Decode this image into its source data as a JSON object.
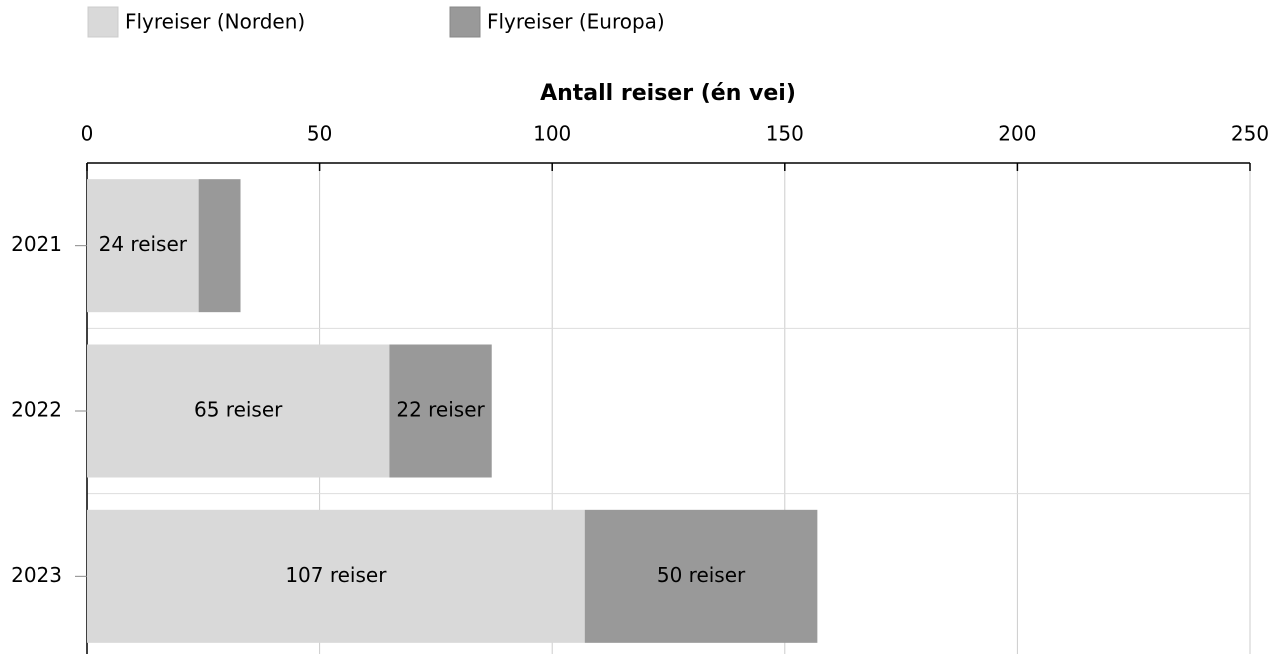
{
  "chart_data": {
    "type": "stacked_bar_horizontal",
    "xlabel": "Antall reiser (én vei)",
    "categories": [
      "2021",
      "2022",
      "2023"
    ],
    "series": [
      {
        "name": "Flyreiser (Norden)",
        "color": "#d9d9d9",
        "values": [
          24,
          65,
          107
        ],
        "value_labels": [
          "24 reiser",
          "65 reiser",
          "107 reiser"
        ]
      },
      {
        "name": "Flyreiser (Europa)",
        "color": "#999999",
        "values": [
          9,
          22,
          50
        ],
        "value_labels": [
          null,
          "22 reiser",
          "50 reiser"
        ]
      }
    ],
    "xlim": [
      0,
      250
    ],
    "xticks": [
      0,
      50,
      100,
      150,
      200,
      250
    ],
    "grid": true,
    "legend": "top-left"
  }
}
